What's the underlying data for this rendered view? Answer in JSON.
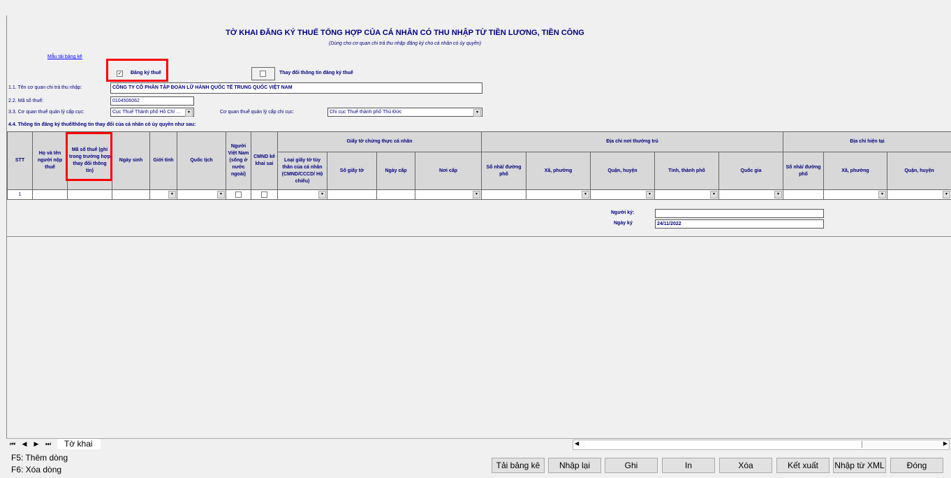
{
  "form": {
    "title": "TỜ KHAI ĐĂNG KÝ THUẾ TỔNG HỢP CỦA CÁ NHÂN CÓ THU NHẬP TỪ TIỀN LƯƠNG, TIỀN CÔNG",
    "subtitle": "(Dùng cho cơ quan chi trả thu nhập đăng ký cho cá nhân có ủy quyền)",
    "template_link": "Mẫu tải bảng kê",
    "register_label": "Đăng ký thuế",
    "register_checked": true,
    "change_label": "Thay đổi thông tin đăng ký thuế",
    "change_checked": false,
    "payer_label": "1.1. Tên cơ quan chi trả thu nhập:",
    "payer_value": "CÔNG TY CỔ PHẦN TẬP ĐOÀN LỮ HÀNH QUỐC TẾ TRUNG QUỐC VIỆT NAM",
    "tax_id_label": "2.2. Mã số thuế:",
    "tax_id_value": "0104506062",
    "dept_label": "3.3. Cơ quan thuế quản lý cấp cục:",
    "dept_value": "Cục Thuế Thành phố Hồ Chí Minh",
    "branch_label": "Cơ quan thuế quản lý cấp chi cục:",
    "branch_value": "Chi cục Thuế thành phố Thủ Đức",
    "info_label": "4.4. Thông tin đăng ký thuế/thông tin thay đổi của cá nhân có ủy quyền như sau:"
  },
  "table": {
    "group_docs": "Giấy tờ chứng thực cá nhân",
    "group_perm": "Địa chỉ nơi thường trú",
    "group_curr": "Địa chỉ hiện tại",
    "columns": [
      "STT",
      "Họ và tên người nộp thuế",
      "Mã số thuế (ghi trong trường hợp thay đổi thông tin)",
      "Ngày sinh",
      "Giới tính",
      "Quốc tịch",
      "Người Việt Nam (sống ở nước ngoài)",
      "CMND kê khai sai",
      "Loại giấy tờ tùy thân của cá nhân (CMND/CCCD/ Hộ chiếu)",
      "Số giấy tờ",
      "Ngày cấp",
      "Nơi cấp",
      "Số nhà/ đường phố",
      "Xã, phường",
      "Quận, huyện",
      "Tỉnh, thành phố",
      "Quốc gia",
      "Số nhà/ đường phố",
      "Xã, phường",
      "Quận, huyện"
    ],
    "rows": [
      {
        "stt": "1"
      }
    ]
  },
  "sign": {
    "signer_label": "Người ký:",
    "signer_value": "",
    "date_label": "Ngày ký",
    "date_value": "24/11/2022"
  },
  "sheet_tab": "Tờ khai",
  "shortcuts": [
    "F5: Thêm dòng",
    "F6: Xóa dòng"
  ],
  "buttons": [
    "Tải bảng kê",
    "Nhập lại",
    "Ghi",
    "In",
    "Xóa",
    "Kết xuất",
    "Nhập từ XML",
    "Đóng"
  ]
}
